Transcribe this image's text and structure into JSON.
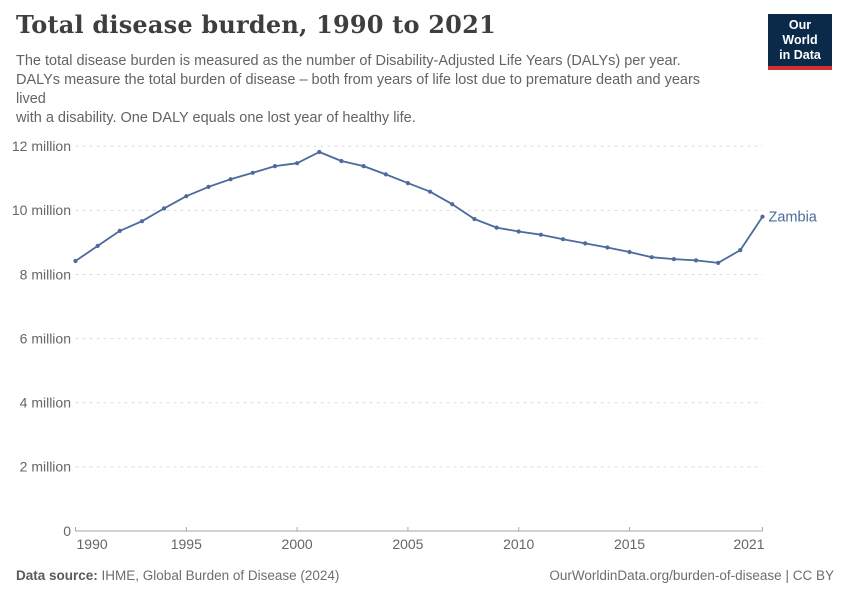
{
  "header": {
    "title": "Total disease burden, 1990 to 2021",
    "subtitle_lines": [
      "The total disease burden is measured as the number of Disability-Adjusted Life Years (DALYs) per year.",
      "DALYs measure the total burden of disease – both from years of life lost due to premature death and years",
      "lived",
      "with a disability. One DALY equals one lost year of healthy life."
    ],
    "logo": {
      "line1": "Our World",
      "line2": "in Data",
      "bg_color": "#0b2a4a",
      "accent_color": "#d0342c"
    }
  },
  "chart_data": {
    "type": "line",
    "title": "Total disease burden, 1990 to 2021",
    "entity_label": "Zambia",
    "x": [
      1990,
      1991,
      1992,
      1993,
      1994,
      1995,
      1996,
      1997,
      1998,
      1999,
      2000,
      2001,
      2002,
      2003,
      2004,
      2005,
      2006,
      2007,
      2008,
      2009,
      2010,
      2011,
      2012,
      2013,
      2014,
      2015,
      2016,
      2017,
      2018,
      2019,
      2020,
      2021
    ],
    "series": [
      {
        "name": "Zambia",
        "color": "#4C6A9C",
        "values": [
          8.42,
          8.89,
          9.36,
          9.66,
          10.06,
          10.44,
          10.73,
          10.97,
          11.17,
          11.38,
          11.47,
          11.82,
          11.54,
          11.38,
          11.12,
          10.85,
          10.58,
          10.19,
          9.73,
          9.46,
          9.34,
          9.24,
          9.1,
          8.97,
          8.84,
          8.7,
          8.54,
          8.48,
          8.44,
          8.36,
          8.76,
          9.8
        ]
      }
    ],
    "value_unit": "million DALYs",
    "ylim": [
      0,
      12
    ],
    "y_tick_values": [
      0,
      2,
      4,
      6,
      8,
      10,
      12
    ],
    "y_tick_suffix": " million",
    "x_tick_values": [
      1990,
      1995,
      2000,
      2005,
      2010,
      2015,
      2021
    ],
    "grid": "horizontal-dashed",
    "legend_position": "end-of-line-label",
    "axis_color": "#a6a6a6",
    "grid_color": "#dcdcdc",
    "tick_label_color": "#666666"
  },
  "footer": {
    "source_label": "Data source:",
    "source_text": "IHME, Global Burden of Disease (2024)",
    "rights_link": "OurWorldinData.org/burden-of-disease",
    "rights_separator": "|",
    "rights_license": "CC BY"
  }
}
